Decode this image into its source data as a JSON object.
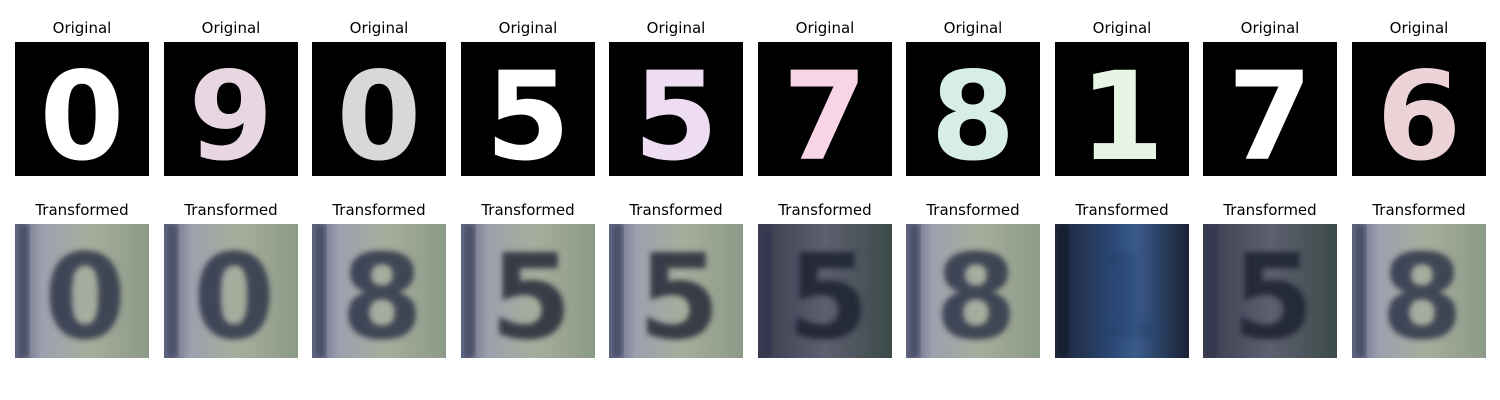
{
  "figure": {
    "rows": [
      {
        "title": "Original",
        "panels": [
          {
            "digit": "0",
            "color": "#ffffff",
            "variant": "mnist"
          },
          {
            "digit": "9",
            "color": "#e8d6e2",
            "variant": "mnist"
          },
          {
            "digit": "0",
            "color": "#d8d8d8",
            "variant": "mnist"
          },
          {
            "digit": "5",
            "color": "#ffffff",
            "variant": "mnist"
          },
          {
            "digit": "5",
            "color": "#eedcf3",
            "variant": "mnist"
          },
          {
            "digit": "7",
            "color": "#f8d4e6",
            "variant": "mnist"
          },
          {
            "digit": "8",
            "color": "#d6eee4",
            "variant": "mnist"
          },
          {
            "digit": "1",
            "color": "#e6f5e4",
            "variant": "mnist"
          },
          {
            "digit": "7",
            "color": "#ffffff",
            "variant": "mnist"
          },
          {
            "digit": "6",
            "color": "#ecd3d8",
            "variant": "mnist"
          }
        ]
      },
      {
        "title": "Transformed",
        "panels": [
          {
            "digit": "0",
            "color": "#2f3548",
            "variant": "svhn"
          },
          {
            "digit": "0",
            "color": "#2f3548",
            "variant": "svhn"
          },
          {
            "digit": "8",
            "color": "#2f3548",
            "variant": "svhn"
          },
          {
            "digit": "5",
            "color": "#262a38",
            "variant": "svhn"
          },
          {
            "digit": "5",
            "color": "#262a38",
            "variant": "svhn"
          },
          {
            "digit": "5",
            "color": "#1c2030",
            "variant": "svhn-dark"
          },
          {
            "digit": "8",
            "color": "#2f3548",
            "variant": "svhn"
          },
          {
            "digit": "1",
            "color": "#22406a",
            "variant": "svhn-night"
          },
          {
            "digit": "5",
            "color": "#1c2030",
            "variant": "svhn-dark"
          },
          {
            "digit": "8",
            "color": "#2f3548",
            "variant": "svhn"
          }
        ]
      }
    ]
  }
}
